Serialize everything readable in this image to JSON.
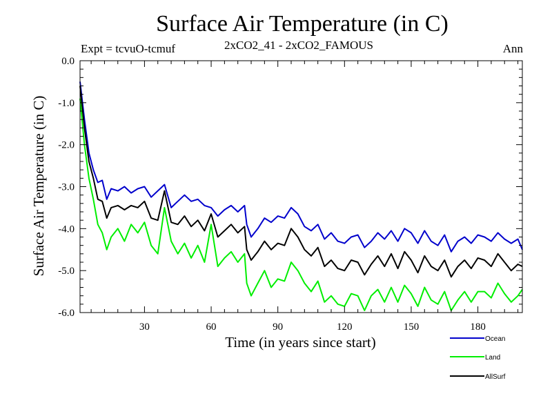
{
  "header": {
    "title": "Surface Air Temperature (in C)",
    "expt": "Expt = tcvuO-tcmuf",
    "subtitle": "2xCO2_41 - 2xCO2_FAMOUS",
    "season": "Ann"
  },
  "chart_data": {
    "type": "line",
    "xlabel": "Time (in years since start)",
    "ylabel": "Surface Air Temperature (in C)",
    "xlim": [
      1,
      200
    ],
    "ylim": [
      -6.0,
      0.0
    ],
    "xticks": [
      30,
      60,
      90,
      120,
      150,
      180
    ],
    "yticks": [
      0.0,
      -1.0,
      -2.0,
      -3.0,
      -4.0,
      -5.0,
      -6.0
    ],
    "ytick_labels": [
      "0.0",
      "-1.0",
      "-2.0",
      "-3.0",
      "-4.0",
      "-5.0",
      "-6.0"
    ],
    "grid": false,
    "legend_position": "bottom-right, outside plot",
    "series": [
      {
        "name": "Ocean",
        "color": "#0000cc",
        "x": [
          1,
          3,
          5,
          7,
          9,
          11,
          13,
          15,
          18,
          21,
          24,
          27,
          30,
          33,
          36,
          39,
          42,
          45,
          48,
          51,
          54,
          57,
          60,
          63,
          66,
          69,
          72,
          75,
          76,
          78,
          81,
          84,
          87,
          90,
          93,
          96,
          99,
          102,
          105,
          108,
          111,
          114,
          117,
          120,
          123,
          126,
          129,
          132,
          135,
          138,
          141,
          144,
          147,
          150,
          153,
          156,
          159,
          162,
          165,
          168,
          171,
          174,
          177,
          180,
          183,
          186,
          189,
          192,
          195,
          198,
          200
        ],
        "values": [
          -0.5,
          -1.4,
          -2.2,
          -2.6,
          -2.9,
          -2.85,
          -3.3,
          -3.05,
          -3.1,
          -3.0,
          -3.15,
          -3.05,
          -3.0,
          -3.25,
          -3.1,
          -2.95,
          -3.5,
          -3.35,
          -3.2,
          -3.35,
          -3.3,
          -3.45,
          -3.5,
          -3.7,
          -3.55,
          -3.45,
          -3.6,
          -3.45,
          -3.9,
          -4.2,
          -4.0,
          -3.75,
          -3.85,
          -3.7,
          -3.75,
          -3.5,
          -3.65,
          -3.95,
          -4.05,
          -3.9,
          -4.25,
          -4.1,
          -4.3,
          -4.35,
          -4.2,
          -4.15,
          -4.45,
          -4.3,
          -4.1,
          -4.25,
          -4.05,
          -4.3,
          -4.0,
          -4.1,
          -4.35,
          -4.05,
          -4.3,
          -4.4,
          -4.15,
          -4.55,
          -4.3,
          -4.2,
          -4.35,
          -4.15,
          -4.2,
          -4.3,
          -4.1,
          -4.25,
          -4.35,
          -4.25,
          -4.5
        ]
      },
      {
        "name": "Land",
        "color": "#00ee00",
        "x": [
          1,
          3,
          5,
          7,
          9,
          11,
          13,
          15,
          18,
          21,
          24,
          27,
          30,
          33,
          36,
          39,
          42,
          45,
          48,
          51,
          54,
          57,
          60,
          63,
          66,
          69,
          72,
          75,
          76,
          78,
          81,
          84,
          87,
          90,
          93,
          96,
          99,
          102,
          105,
          108,
          111,
          114,
          117,
          120,
          123,
          126,
          129,
          132,
          135,
          138,
          141,
          144,
          147,
          150,
          153,
          156,
          159,
          162,
          165,
          168,
          171,
          174,
          177,
          180,
          183,
          186,
          189,
          192,
          195,
          198,
          200
        ],
        "values": [
          -0.9,
          -2.0,
          -2.8,
          -3.3,
          -3.9,
          -4.1,
          -4.5,
          -4.2,
          -4.0,
          -4.3,
          -3.9,
          -4.1,
          -3.85,
          -4.4,
          -4.6,
          -3.5,
          -4.3,
          -4.6,
          -4.35,
          -4.7,
          -4.4,
          -4.8,
          -3.9,
          -4.9,
          -4.7,
          -4.55,
          -4.8,
          -4.6,
          -5.3,
          -5.6,
          -5.3,
          -5.0,
          -5.4,
          -5.2,
          -5.25,
          -4.8,
          -5.0,
          -5.3,
          -5.5,
          -5.25,
          -5.75,
          -5.6,
          -5.8,
          -5.85,
          -5.55,
          -5.6,
          -5.95,
          -5.6,
          -5.45,
          -5.75,
          -5.4,
          -5.75,
          -5.35,
          -5.55,
          -5.85,
          -5.4,
          -5.7,
          -5.8,
          -5.5,
          -5.95,
          -5.7,
          -5.5,
          -5.75,
          -5.5,
          -5.5,
          -5.65,
          -5.3,
          -5.55,
          -5.75,
          -5.6,
          -5.45
        ]
      },
      {
        "name": "AllSurf",
        "color": "#000000",
        "x": [
          1,
          3,
          5,
          7,
          9,
          11,
          13,
          15,
          18,
          21,
          24,
          27,
          30,
          33,
          36,
          39,
          42,
          45,
          48,
          51,
          54,
          57,
          60,
          63,
          66,
          69,
          72,
          75,
          76,
          78,
          81,
          84,
          87,
          90,
          93,
          96,
          99,
          102,
          105,
          108,
          111,
          114,
          117,
          120,
          123,
          126,
          129,
          132,
          135,
          138,
          141,
          144,
          147,
          150,
          153,
          156,
          159,
          162,
          165,
          168,
          171,
          174,
          177,
          180,
          183,
          186,
          189,
          192,
          195,
          198,
          200
        ],
        "values": [
          -0.6,
          -1.6,
          -2.4,
          -2.8,
          -3.3,
          -3.35,
          -3.75,
          -3.5,
          -3.45,
          -3.55,
          -3.45,
          -3.5,
          -3.35,
          -3.75,
          -3.8,
          -3.1,
          -3.85,
          -3.9,
          -3.7,
          -3.95,
          -3.8,
          -4.05,
          -3.65,
          -4.2,
          -4.05,
          -3.9,
          -4.1,
          -3.95,
          -4.5,
          -4.75,
          -4.55,
          -4.3,
          -4.5,
          -4.35,
          -4.4,
          -4.0,
          -4.2,
          -4.5,
          -4.65,
          -4.45,
          -4.9,
          -4.75,
          -4.95,
          -5.0,
          -4.75,
          -4.8,
          -5.1,
          -4.85,
          -4.65,
          -4.9,
          -4.6,
          -4.95,
          -4.55,
          -4.75,
          -5.05,
          -4.65,
          -4.9,
          -5.0,
          -4.75,
          -5.15,
          -4.9,
          -4.75,
          -4.95,
          -4.7,
          -4.75,
          -4.9,
          -4.6,
          -4.8,
          -5.0,
          -4.85,
          -4.9
        ]
      }
    ]
  }
}
